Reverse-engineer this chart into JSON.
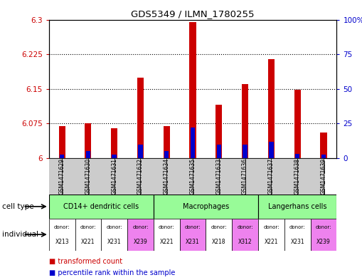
{
  "title": "GDS5349 / ILMN_1780255",
  "samples": [
    "GSM1471629",
    "GSM1471630",
    "GSM1471631",
    "GSM1471632",
    "GSM1471634",
    "GSM1471635",
    "GSM1471633",
    "GSM1471636",
    "GSM1471637",
    "GSM1471638",
    "GSM1471639"
  ],
  "red_values": [
    6.07,
    6.075,
    6.065,
    6.175,
    6.07,
    6.295,
    6.115,
    6.16,
    6.215,
    6.148,
    6.055
  ],
  "blue_values": [
    2.5,
    5.0,
    2.5,
    10.0,
    5.0,
    22.0,
    10.0,
    10.0,
    12.0,
    3.0,
    2.5
  ],
  "ymin": 6.0,
  "ymax": 6.3,
  "yticks": [
    6.0,
    6.075,
    6.15,
    6.225,
    6.3
  ],
  "ytick_labels": [
    "6",
    "6.075",
    "6.15",
    "6.225",
    "6.3"
  ],
  "right_yticks": [
    0,
    25,
    50,
    75,
    100
  ],
  "right_ytick_labels": [
    "0",
    "25",
    "50",
    "75",
    "100%"
  ],
  "cell_type_groups": [
    {
      "label": "CD14+ dendritic cells",
      "start": 0,
      "end": 4,
      "color": "#90EE90"
    },
    {
      "label": "Macrophages",
      "start": 4,
      "end": 8,
      "color": "#90EE90"
    },
    {
      "label": "Langerhans cells",
      "start": 8,
      "end": 11,
      "color": "#90EE90"
    }
  ],
  "donors": [
    "X213",
    "X221",
    "X231",
    "X239",
    "X221",
    "X231",
    "X218",
    "X312",
    "X221",
    "X231",
    "X239"
  ],
  "donor_colors": [
    "#ffffff",
    "#ffffff",
    "#ffffff",
    "#ee82ee",
    "#ffffff",
    "#ee82ee",
    "#ffffff",
    "#ee82ee",
    "#ffffff",
    "#ffffff",
    "#ee82ee"
  ],
  "bar_width": 0.25,
  "bg_color": "#ffffff",
  "red_color": "#cc0000",
  "blue_color": "#0000cc",
  "sample_bg_color": "#cccccc",
  "cell_type_green": "#98FB98"
}
